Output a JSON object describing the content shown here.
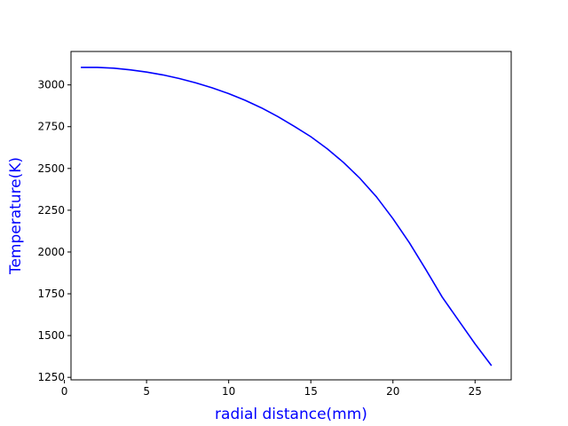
{
  "chart_data": {
    "type": "line",
    "xlabel": "radial distance(mm)",
    "ylabel": "Temperature(K)",
    "xlim": [
      0.4,
      27.2
    ],
    "ylim": [
      1235,
      3200
    ],
    "xticks": [
      0,
      5,
      10,
      15,
      20,
      25
    ],
    "yticks": [
      1250,
      1500,
      1750,
      2000,
      2250,
      2500,
      2750,
      3000
    ],
    "xtick_labels": [
      "0",
      "5",
      "10",
      "15",
      "20",
      "25"
    ],
    "ytick_labels": [
      "1250",
      "1500",
      "1750",
      "2000",
      "2250",
      "2500",
      "2750",
      "3000"
    ],
    "grid": false,
    "label_color": "#0000ff",
    "series": [
      {
        "color": "#0000ff",
        "x": [
          1,
          2,
          3,
          4,
          5,
          6,
          7,
          8,
          9,
          10,
          11,
          12,
          13,
          14,
          15,
          16,
          17,
          18,
          19,
          20,
          21,
          22,
          23,
          24,
          25,
          26
        ],
        "y": [
          3105,
          3105,
          3100,
          3090,
          3077,
          3060,
          3038,
          3012,
          2982,
          2948,
          2908,
          2862,
          2810,
          2752,
          2690,
          2618,
          2535,
          2440,
          2330,
          2200,
          2055,
          1895,
          1730,
          1590,
          1450,
          1320
        ]
      }
    ]
  }
}
